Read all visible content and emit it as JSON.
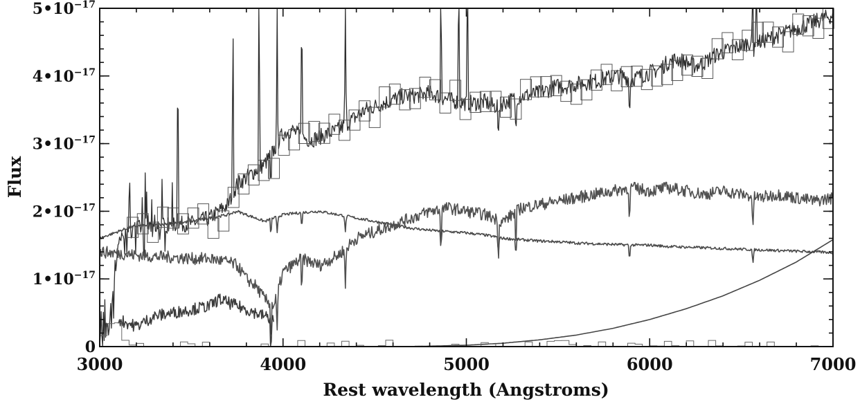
{
  "chart_data": {
    "type": "line",
    "title": "",
    "xlabel": "Rest wavelength (Angstroms)",
    "ylabel": "Flux",
    "xlim": [
      3000,
      7000
    ],
    "ylim": [
      0,
      5e-17
    ],
    "grid": false,
    "legend": "none",
    "x_ticks": [
      {
        "value": 3000,
        "label": "3000"
      },
      {
        "value": 4000,
        "label": "4000"
      },
      {
        "value": 5000,
        "label": "5000"
      },
      {
        "value": 6000,
        "label": "6000"
      },
      {
        "value": 7000,
        "label": "7000"
      }
    ],
    "y_ticks": [
      {
        "value": 0,
        "base": "0",
        "exp": ""
      },
      {
        "value": 1e-17,
        "base": "1•10",
        "exp": "−17"
      },
      {
        "value": 2e-17,
        "base": "2•10",
        "exp": "−17"
      },
      {
        "value": 3e-17,
        "base": "3•10",
        "exp": "−17"
      },
      {
        "value": 4e-17,
        "base": "4•10",
        "exp": "−17"
      },
      {
        "value": 5e-17,
        "base": "5•10",
        "exp": "−17"
      }
    ],
    "series": [
      {
        "style": "noisy",
        "color": "#2e2e2e",
        "x": [
          3000,
          3050,
          3080,
          3100,
          3150,
          3200,
          3300,
          3400,
          3500,
          3600,
          3700,
          3750,
          3800,
          3850,
          3900,
          3950,
          4000,
          4050,
          4100,
          4150,
          4200,
          4250,
          4300,
          4350,
          4400,
          4450,
          4500,
          4550,
          4600,
          4650,
          4700,
          4750,
          4800,
          4850,
          4900,
          4950,
          5000,
          5050,
          5100,
          5150,
          5200,
          5250,
          5300,
          5350,
          5400,
          5450,
          5500,
          5550,
          5600,
          5650,
          5700,
          5750,
          5800,
          5850,
          5900,
          5950,
          6000,
          6050,
          6100,
          6150,
          6200,
          6250,
          6300,
          6350,
          6400,
          6450,
          6500,
          6550,
          6600,
          6650,
          6700,
          6750,
          6800,
          6850,
          6900,
          6950,
          7000
        ],
        "y": [
          1e-18,
          3e-18,
          1e-17,
          1.5e-17,
          1.7e-17,
          1.75e-17,
          1.78e-17,
          1.8e-17,
          1.82e-17,
          1.9e-17,
          2.1e-17,
          2.4e-17,
          2.5e-17,
          2.6e-17,
          2.7e-17,
          2.9e-17,
          3.15e-17,
          3.2e-17,
          3.1e-17,
          3.05e-17,
          3.1e-17,
          3.15e-17,
          3.2e-17,
          3.3e-17,
          3.4e-17,
          3.5e-17,
          3.55e-17,
          3.6e-17,
          3.65e-17,
          3.7e-17,
          3.7e-17,
          3.72e-17,
          3.75e-17,
          3.7e-17,
          3.65e-17,
          3.62e-17,
          3.6e-17,
          3.6e-17,
          3.62e-17,
          3.55e-17,
          3.6e-17,
          3.65e-17,
          3.7e-17,
          3.72e-17,
          3.75e-17,
          3.8e-17,
          3.85e-17,
          3.85e-17,
          3.88e-17,
          3.9e-17,
          3.92e-17,
          3.95e-17,
          4e-17,
          4e-17,
          3.95e-17,
          4e-17,
          4.05e-17,
          4.1e-17,
          4.2e-17,
          4.25e-17,
          4.2e-17,
          4.15e-17,
          4.2e-17,
          4.3e-17,
          4.35e-17,
          4.4e-17,
          4.45e-17,
          4.5e-17,
          4.5e-17,
          4.55e-17,
          4.6e-17,
          4.65e-17,
          4.7e-17,
          4.75e-17,
          4.8e-17,
          4.85e-17,
          4.9e-17
        ]
      },
      {
        "style": "noisy",
        "color": "#4a4a4a",
        "x": [
          3000,
          3100,
          3150,
          3200,
          3300,
          3400,
          3500,
          3600,
          3700,
          3750,
          3800,
          3850,
          3900,
          3950,
          4000,
          4100,
          4200,
          4300,
          4400,
          4500,
          4600,
          4700,
          4800,
          4900,
          5000,
          5100,
          5200,
          5300,
          5400,
          5500,
          5600,
          5700,
          5800,
          5900,
          6000,
          6100,
          6200,
          6300,
          6400,
          6500,
          6600,
          6700,
          6800,
          6900,
          7000
        ],
        "y": [
          1.6e-17,
          1.7e-17,
          1.75e-17,
          1.78e-17,
          1.8e-17,
          1.82e-17,
          1.85e-17,
          1.9e-17,
          1.95e-17,
          2e-17,
          1.95e-17,
          1.9e-17,
          1.85e-17,
          1.9e-17,
          1.95e-17,
          1.98e-17,
          2e-17,
          1.95e-17,
          1.9e-17,
          1.85e-17,
          1.8e-17,
          1.75e-17,
          1.72e-17,
          1.7e-17,
          1.68e-17,
          1.65e-17,
          1.6e-17,
          1.58e-17,
          1.56e-17,
          1.55e-17,
          1.53e-17,
          1.52e-17,
          1.51e-17,
          1.5e-17,
          1.5e-17,
          1.48e-17,
          1.47e-17,
          1.46e-17,
          1.45e-17,
          1.44e-17,
          1.43e-17,
          1.42e-17,
          1.41e-17,
          1.4e-17,
          1.39e-17
        ]
      },
      {
        "style": "noisy",
        "color": "#505050",
        "x": [
          3000,
          3100,
          3200,
          3300,
          3400,
          3500,
          3600,
          3700,
          3750,
          3800,
          3850,
          3900,
          3950,
          4000,
          4050,
          4100,
          4150,
          4200,
          4300,
          4400,
          4500,
          4600,
          4700,
          4800,
          4900,
          5000,
          5100,
          5200,
          5300,
          5400,
          5500,
          5600,
          5700,
          5800,
          5900,
          6000,
          6100,
          6200,
          6300,
          6400,
          6500,
          6600,
          6700,
          6800,
          6900,
          7000
        ],
        "y": [
          1.4e-17,
          1.38e-17,
          1.35e-17,
          1.33e-17,
          1.32e-17,
          1.3e-17,
          1.3e-17,
          1.25e-17,
          1.2e-17,
          1e-17,
          9e-18,
          7e-18,
          6e-18,
          1.1e-17,
          1.2e-17,
          1.3e-17,
          1.25e-17,
          1.2e-17,
          1.35e-17,
          1.6e-17,
          1.7e-17,
          1.8e-17,
          1.9e-17,
          2e-17,
          2.05e-17,
          2e-17,
          1.95e-17,
          1.85e-17,
          2.05e-17,
          2.1e-17,
          2.15e-17,
          2.2e-17,
          2.25e-17,
          2.3e-17,
          2.35e-17,
          2.3e-17,
          2.35e-17,
          2.3e-17,
          2.25e-17,
          2.3e-17,
          2.25e-17,
          2.2e-17,
          2.25e-17,
          2.2e-17,
          2.15e-17,
          2.2e-17
        ]
      },
      {
        "style": "noisy",
        "color": "#3c3c3c",
        "x": [
          3100,
          3150,
          3200,
          3300,
          3400,
          3500,
          3600,
          3650,
          3700,
          3750,
          3800,
          3850,
          3900,
          3950
        ],
        "y": [
          4e-18,
          3.5e-18,
          3e-18,
          4.5e-18,
          5e-18,
          5.5e-18,
          6e-18,
          7e-18,
          6.5e-18,
          6e-18,
          5.5e-18,
          5e-18,
          4.5e-18,
          4e-18
        ]
      },
      {
        "style": "smooth",
        "color": "#444444",
        "x": [
          4700,
          5000,
          5200,
          5400,
          5600,
          5800,
          6000,
          6200,
          6400,
          6600,
          6800,
          7000
        ],
        "y": [
          0.0,
          2e-19,
          5e-19,
          1e-18,
          1.7e-18,
          2.7e-18,
          4e-18,
          5.6e-18,
          7.5e-18,
          9.8e-18,
          1.25e-17,
          1.58e-17
        ]
      }
    ],
    "annotations": [
      "stepped outline boxes around the spectrum",
      "stepped residual histogram near zero flux"
    ]
  }
}
